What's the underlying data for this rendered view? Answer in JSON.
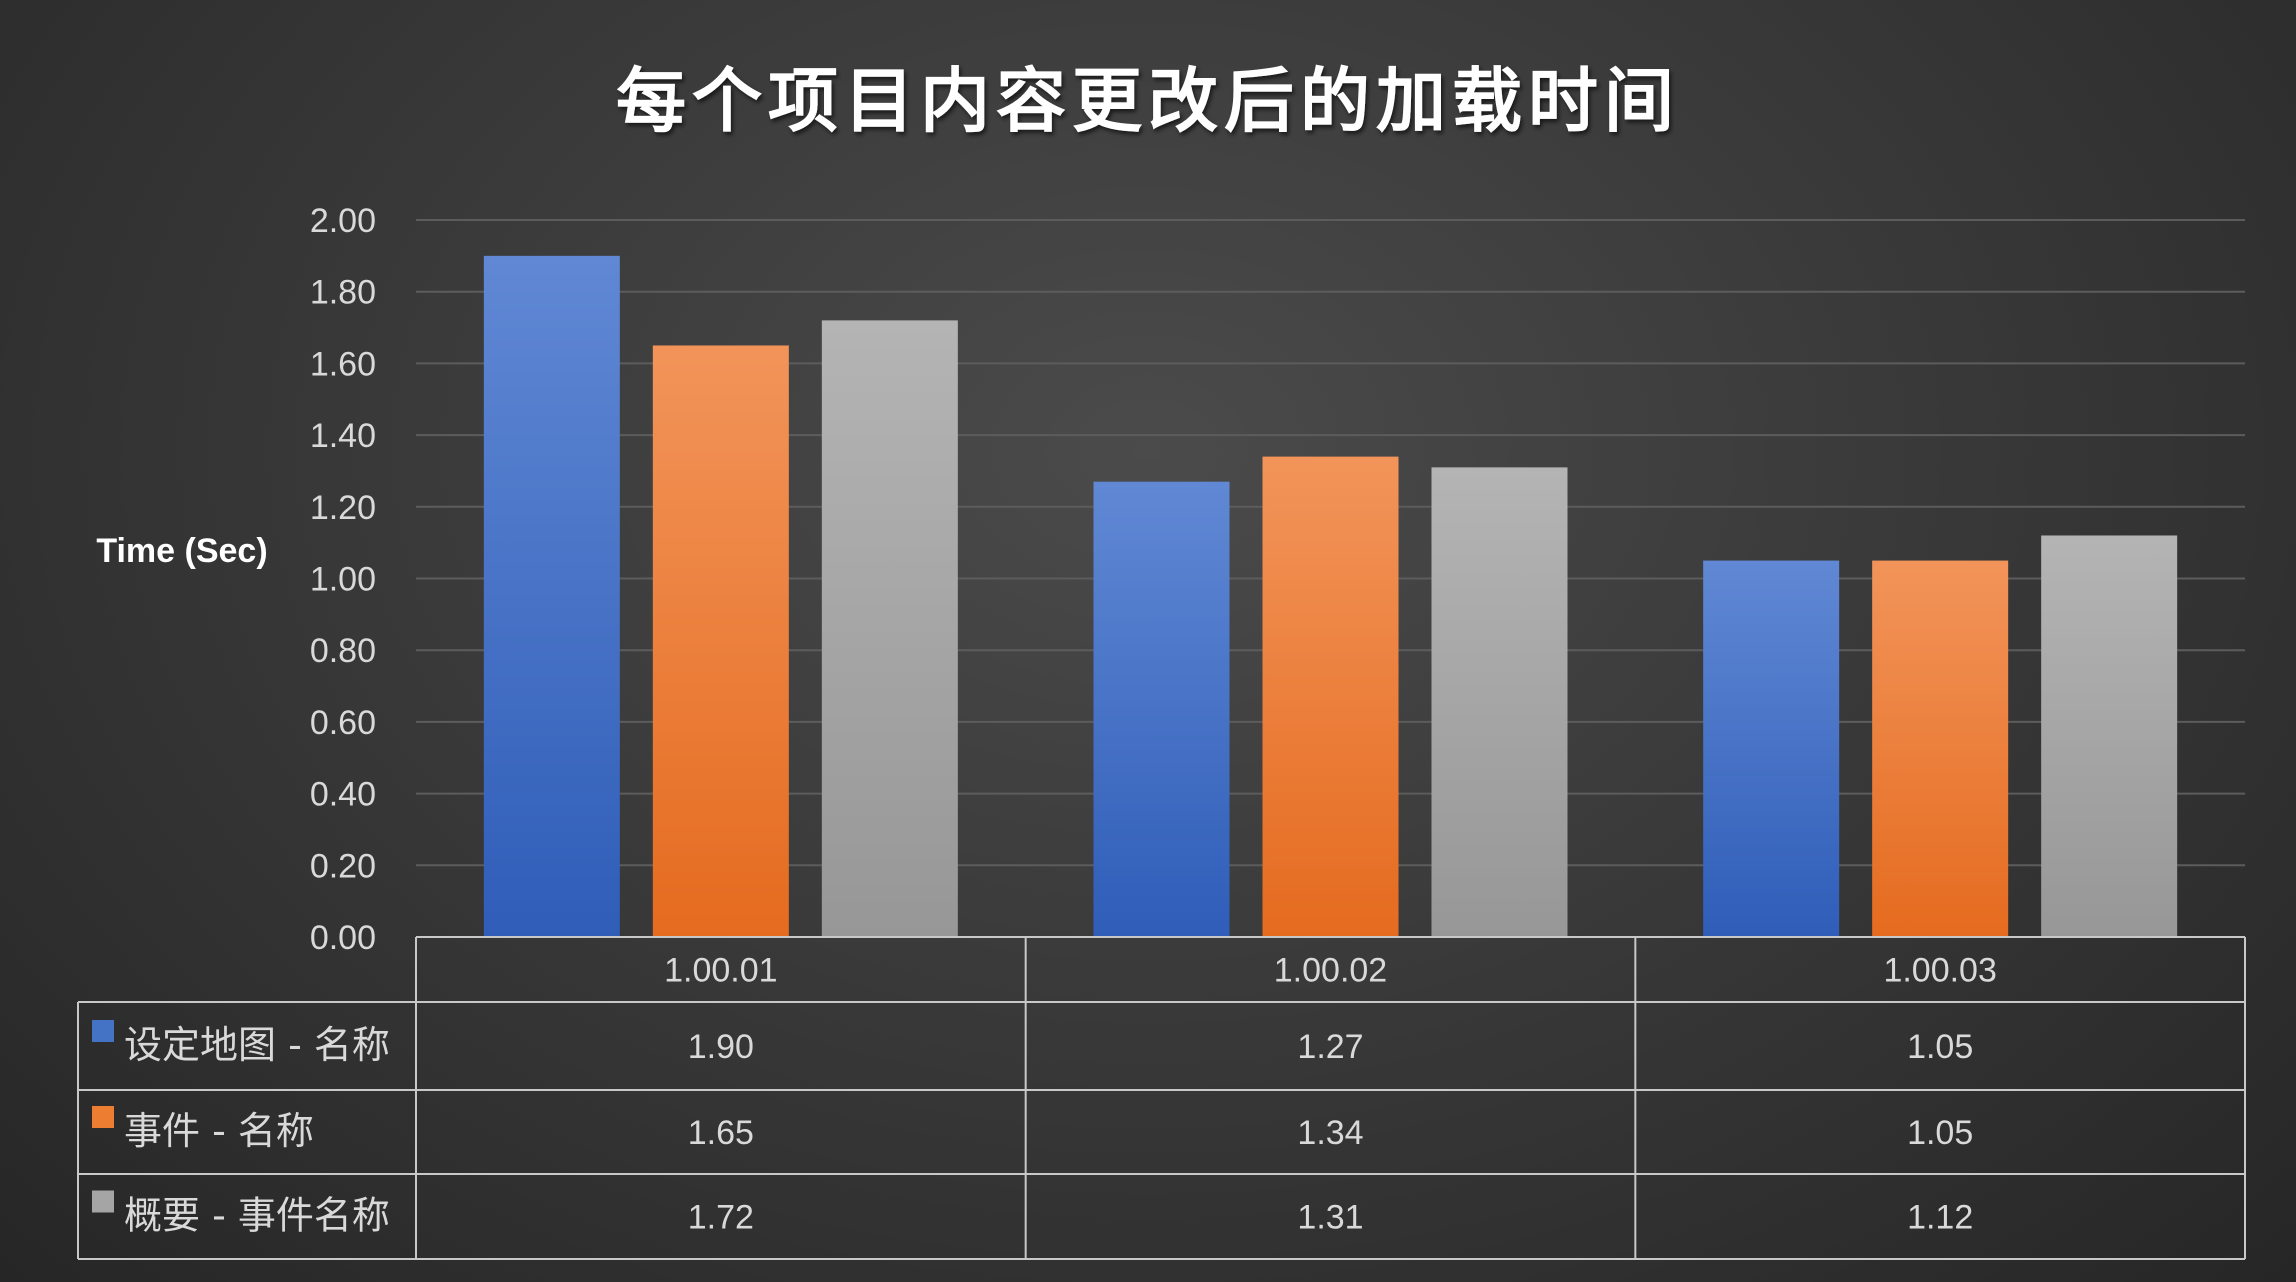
{
  "chart_data": {
    "type": "bar",
    "title": "每个项目内容更改后的加载时间",
    "ylabel": "Time (Sec)",
    "xlabel": "",
    "ylim": [
      0,
      2.0
    ],
    "yticks": [
      "0.00",
      "0.20",
      "0.40",
      "0.60",
      "0.80",
      "1.00",
      "1.20",
      "1.40",
      "1.60",
      "1.80",
      "2.00"
    ],
    "grid": true,
    "legend": "data-table",
    "categories": [
      "1.00.01",
      "1.00.02",
      "1.00.03"
    ],
    "series": [
      {
        "name": "设定地图 - 名称",
        "values": [
          1.9,
          1.27,
          1.05
        ],
        "labels": [
          "1.90",
          "1.27",
          "1.05"
        ],
        "color": "#4472C4"
      },
      {
        "name": "事件 - 名称",
        "values": [
          1.65,
          1.34,
          1.05
        ],
        "labels": [
          "1.65",
          "1.34",
          "1.05"
        ],
        "color": "#ED7D31"
      },
      {
        "name": "概要 - 事件名称",
        "values": [
          1.72,
          1.31,
          1.12
        ],
        "labels": [
          "1.72",
          "1.31",
          "1.12"
        ],
        "color": "#A5A5A5"
      }
    ]
  }
}
